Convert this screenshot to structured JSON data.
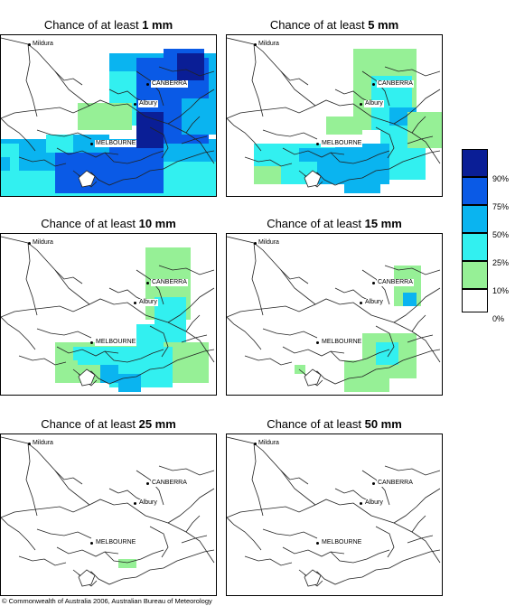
{
  "panels": [
    {
      "title_prefix": "Chance of at least ",
      "title_amount": "1 mm",
      "cities": {
        "mildura": "Mildura",
        "canberra": "CANBERRA",
        "albury": "Albury",
        "melbourne": "MELBOURNE"
      }
    },
    {
      "title_prefix": "Chance of at least ",
      "title_amount": "5 mm",
      "cities": {
        "mildura": "Mildura",
        "canberra": "CANBERRA",
        "albury": "Albury",
        "melbourne": "MELBOURNE"
      }
    },
    {
      "title_prefix": "Chance of at least ",
      "title_amount": "10 mm",
      "cities": {
        "mildura": "Mildura",
        "canberra": "CANBERRA",
        "albury": "Albury",
        "melbourne": "MELBOURNE"
      }
    },
    {
      "title_prefix": "Chance of at least ",
      "title_amount": "15 mm",
      "cities": {
        "mildura": "Mildura",
        "canberra": "CANBERRA",
        "albury": "Albury",
        "melbourne": "MELBOURNE"
      }
    },
    {
      "title_prefix": "Chance of at least ",
      "title_amount": "25 mm",
      "cities": {
        "mildura": "Mildura",
        "canberra": "CANBERRA",
        "albury": "Albury",
        "melbourne": "MELBOURNE"
      }
    },
    {
      "title_prefix": "Chance of at least ",
      "title_amount": "50 mm",
      "cities": {
        "mildura": "Mildura",
        "canberra": "CANBERRA",
        "albury": "Albury",
        "melbourne": "MELBOURNE"
      }
    }
  ],
  "legend": {
    "labels": [
      "90%",
      "75%",
      "50%",
      "25%",
      "10%",
      "0%"
    ],
    "colors": [
      "#0a1e96",
      "#0a5ae6",
      "#0ab4f0",
      "#32f0f0",
      "#96f096",
      "#ffffff"
    ]
  },
  "copyright": "© Commonwealth of Australia 2006, Australian Bureau of Meteorology"
}
